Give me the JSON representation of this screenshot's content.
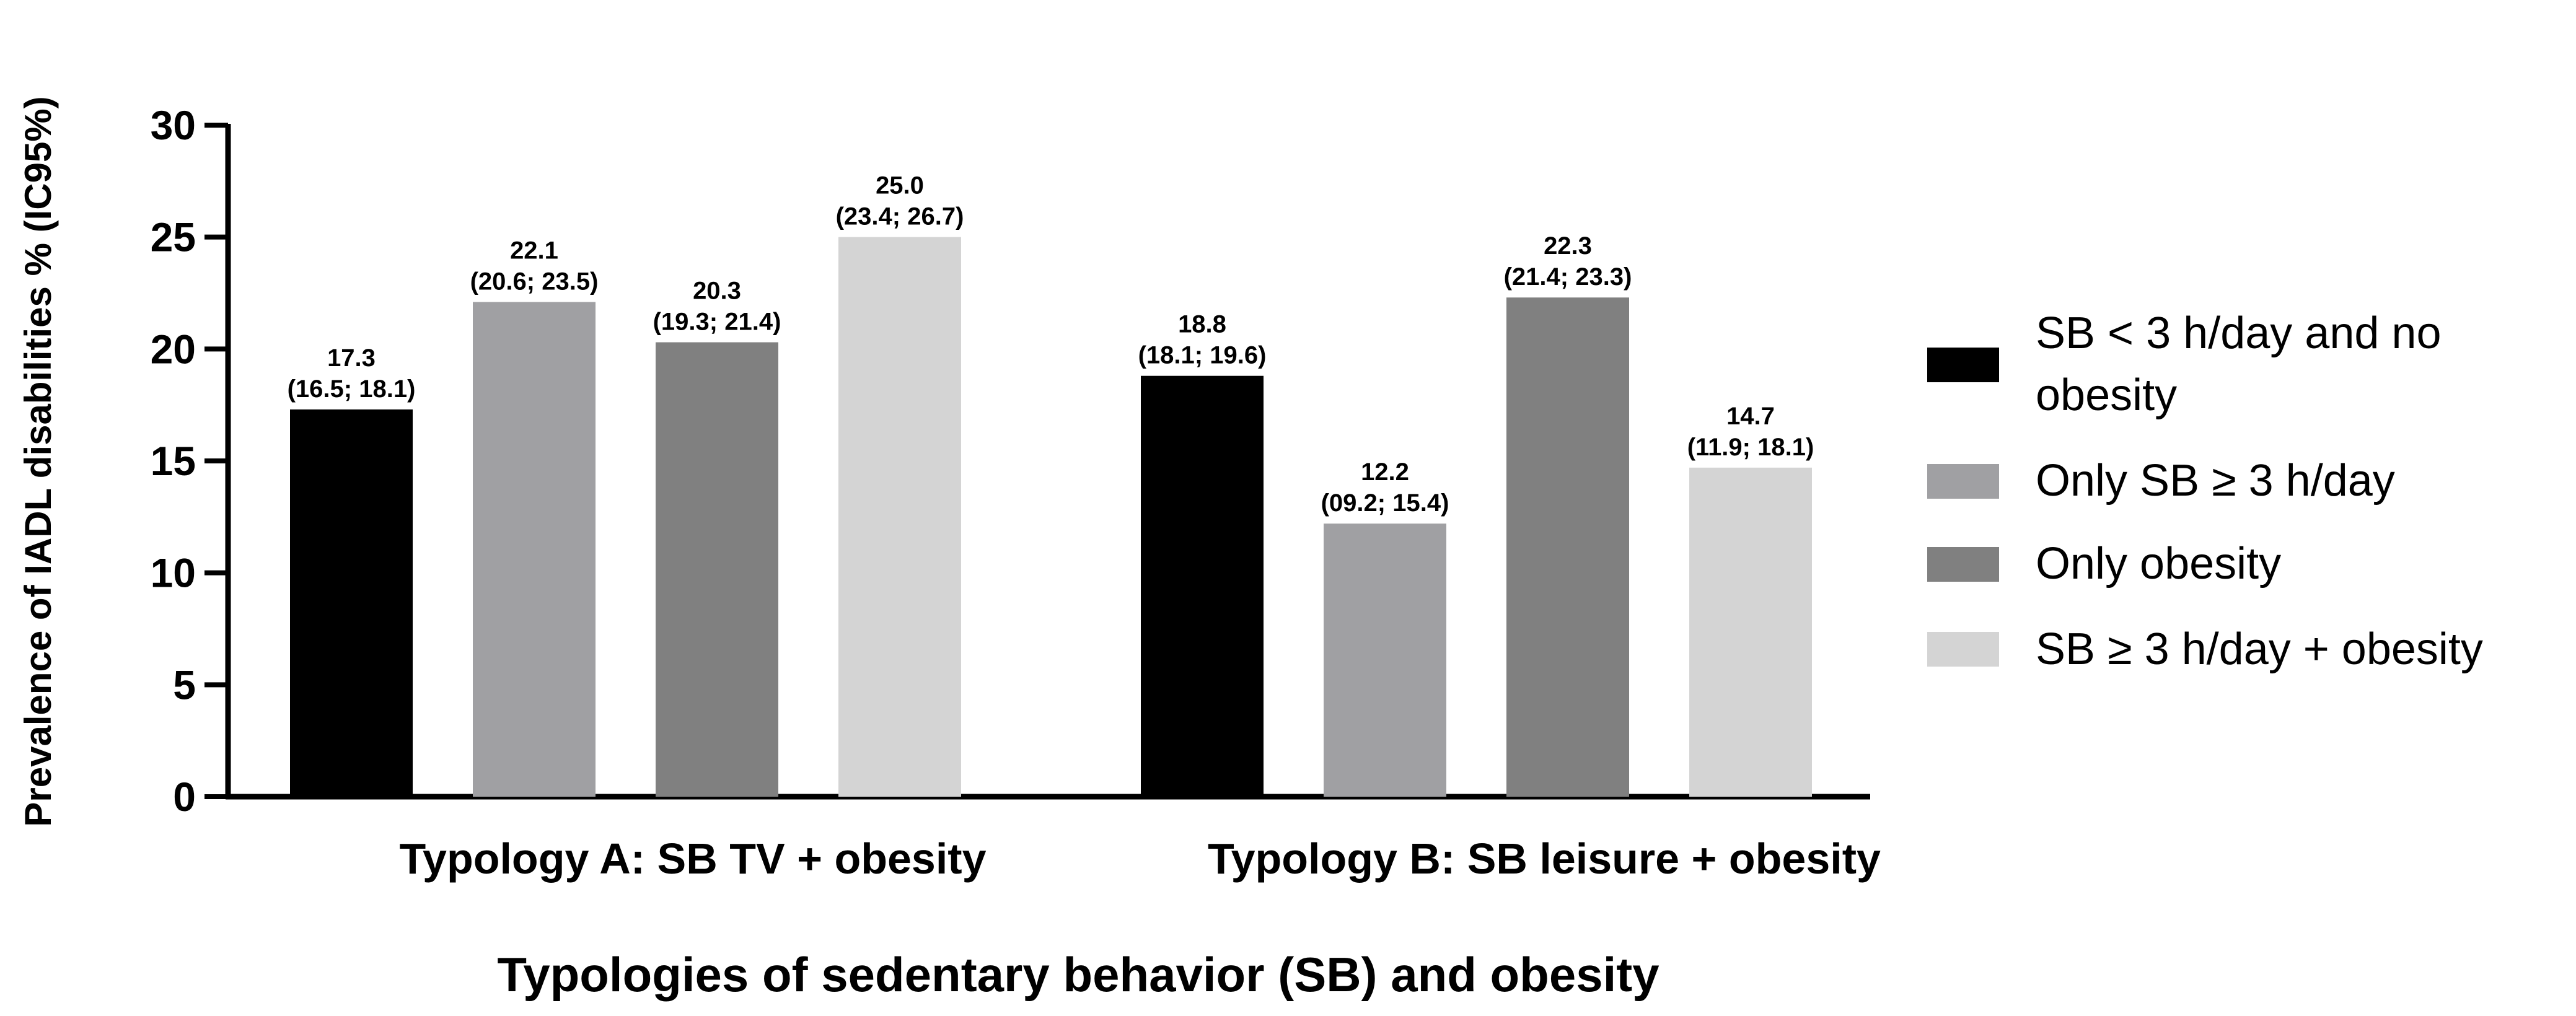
{
  "chart_data": {
    "type": "bar",
    "title": "",
    "xlabel": "Typologies of sedentary behavior (SB) and obesity",
    "ylabel": "Prevalence of IADL disabilities % (IC95%)",
    "ylim": [
      0,
      30
    ],
    "yticks": [
      0,
      5,
      10,
      15,
      20,
      25,
      30
    ],
    "grid": false,
    "legend_position": "right",
    "categories": [
      "Typology A: SB TV + obesity",
      "Typology B: SB leisure + obesity"
    ],
    "series": [
      {
        "name": "SB < 3 h/day and no obesity",
        "color": "#000000",
        "values": [
          17.3,
          18.8
        ],
        "ci": [
          [
            16.5,
            18.1
          ],
          [
            18.1,
            19.6
          ]
        ],
        "labels": [
          "17.3",
          "18.8"
        ],
        "ci_labels": [
          "(16.5; 18.1)",
          "(18.1; 19.6)"
        ]
      },
      {
        "name": "Only SB ≥ 3 h/day",
        "color": "#a0a0a3",
        "values": [
          22.1,
          12.2
        ],
        "ci": [
          [
            20.6,
            23.5
          ],
          [
            9.2,
            15.4
          ]
        ],
        "labels": [
          "22.1",
          "12.2"
        ],
        "ci_labels": [
          "(20.6; 23.5)",
          "(09.2; 15.4)"
        ]
      },
      {
        "name": "Only obesity",
        "color": "#808080",
        "values": [
          20.3,
          22.3
        ],
        "ci": [
          [
            19.3,
            21.4
          ],
          [
            21.4,
            23.3
          ]
        ],
        "labels": [
          "20.3",
          "22.3"
        ],
        "ci_labels": [
          "(19.3; 21.4)",
          "(21.4; 23.3)"
        ]
      },
      {
        "name": "SB ≥ 3 h/day + obesity",
        "color": "#d4d4d4",
        "values": [
          25.0,
          14.7
        ],
        "ci": [
          [
            23.4,
            26.7
          ],
          [
            11.9,
            18.1
          ]
        ],
        "labels": [
          "25.0",
          "14.7"
        ],
        "ci_labels": [
          "(23.4; 26.7)",
          "(11.9; 18.1)"
        ]
      }
    ]
  }
}
